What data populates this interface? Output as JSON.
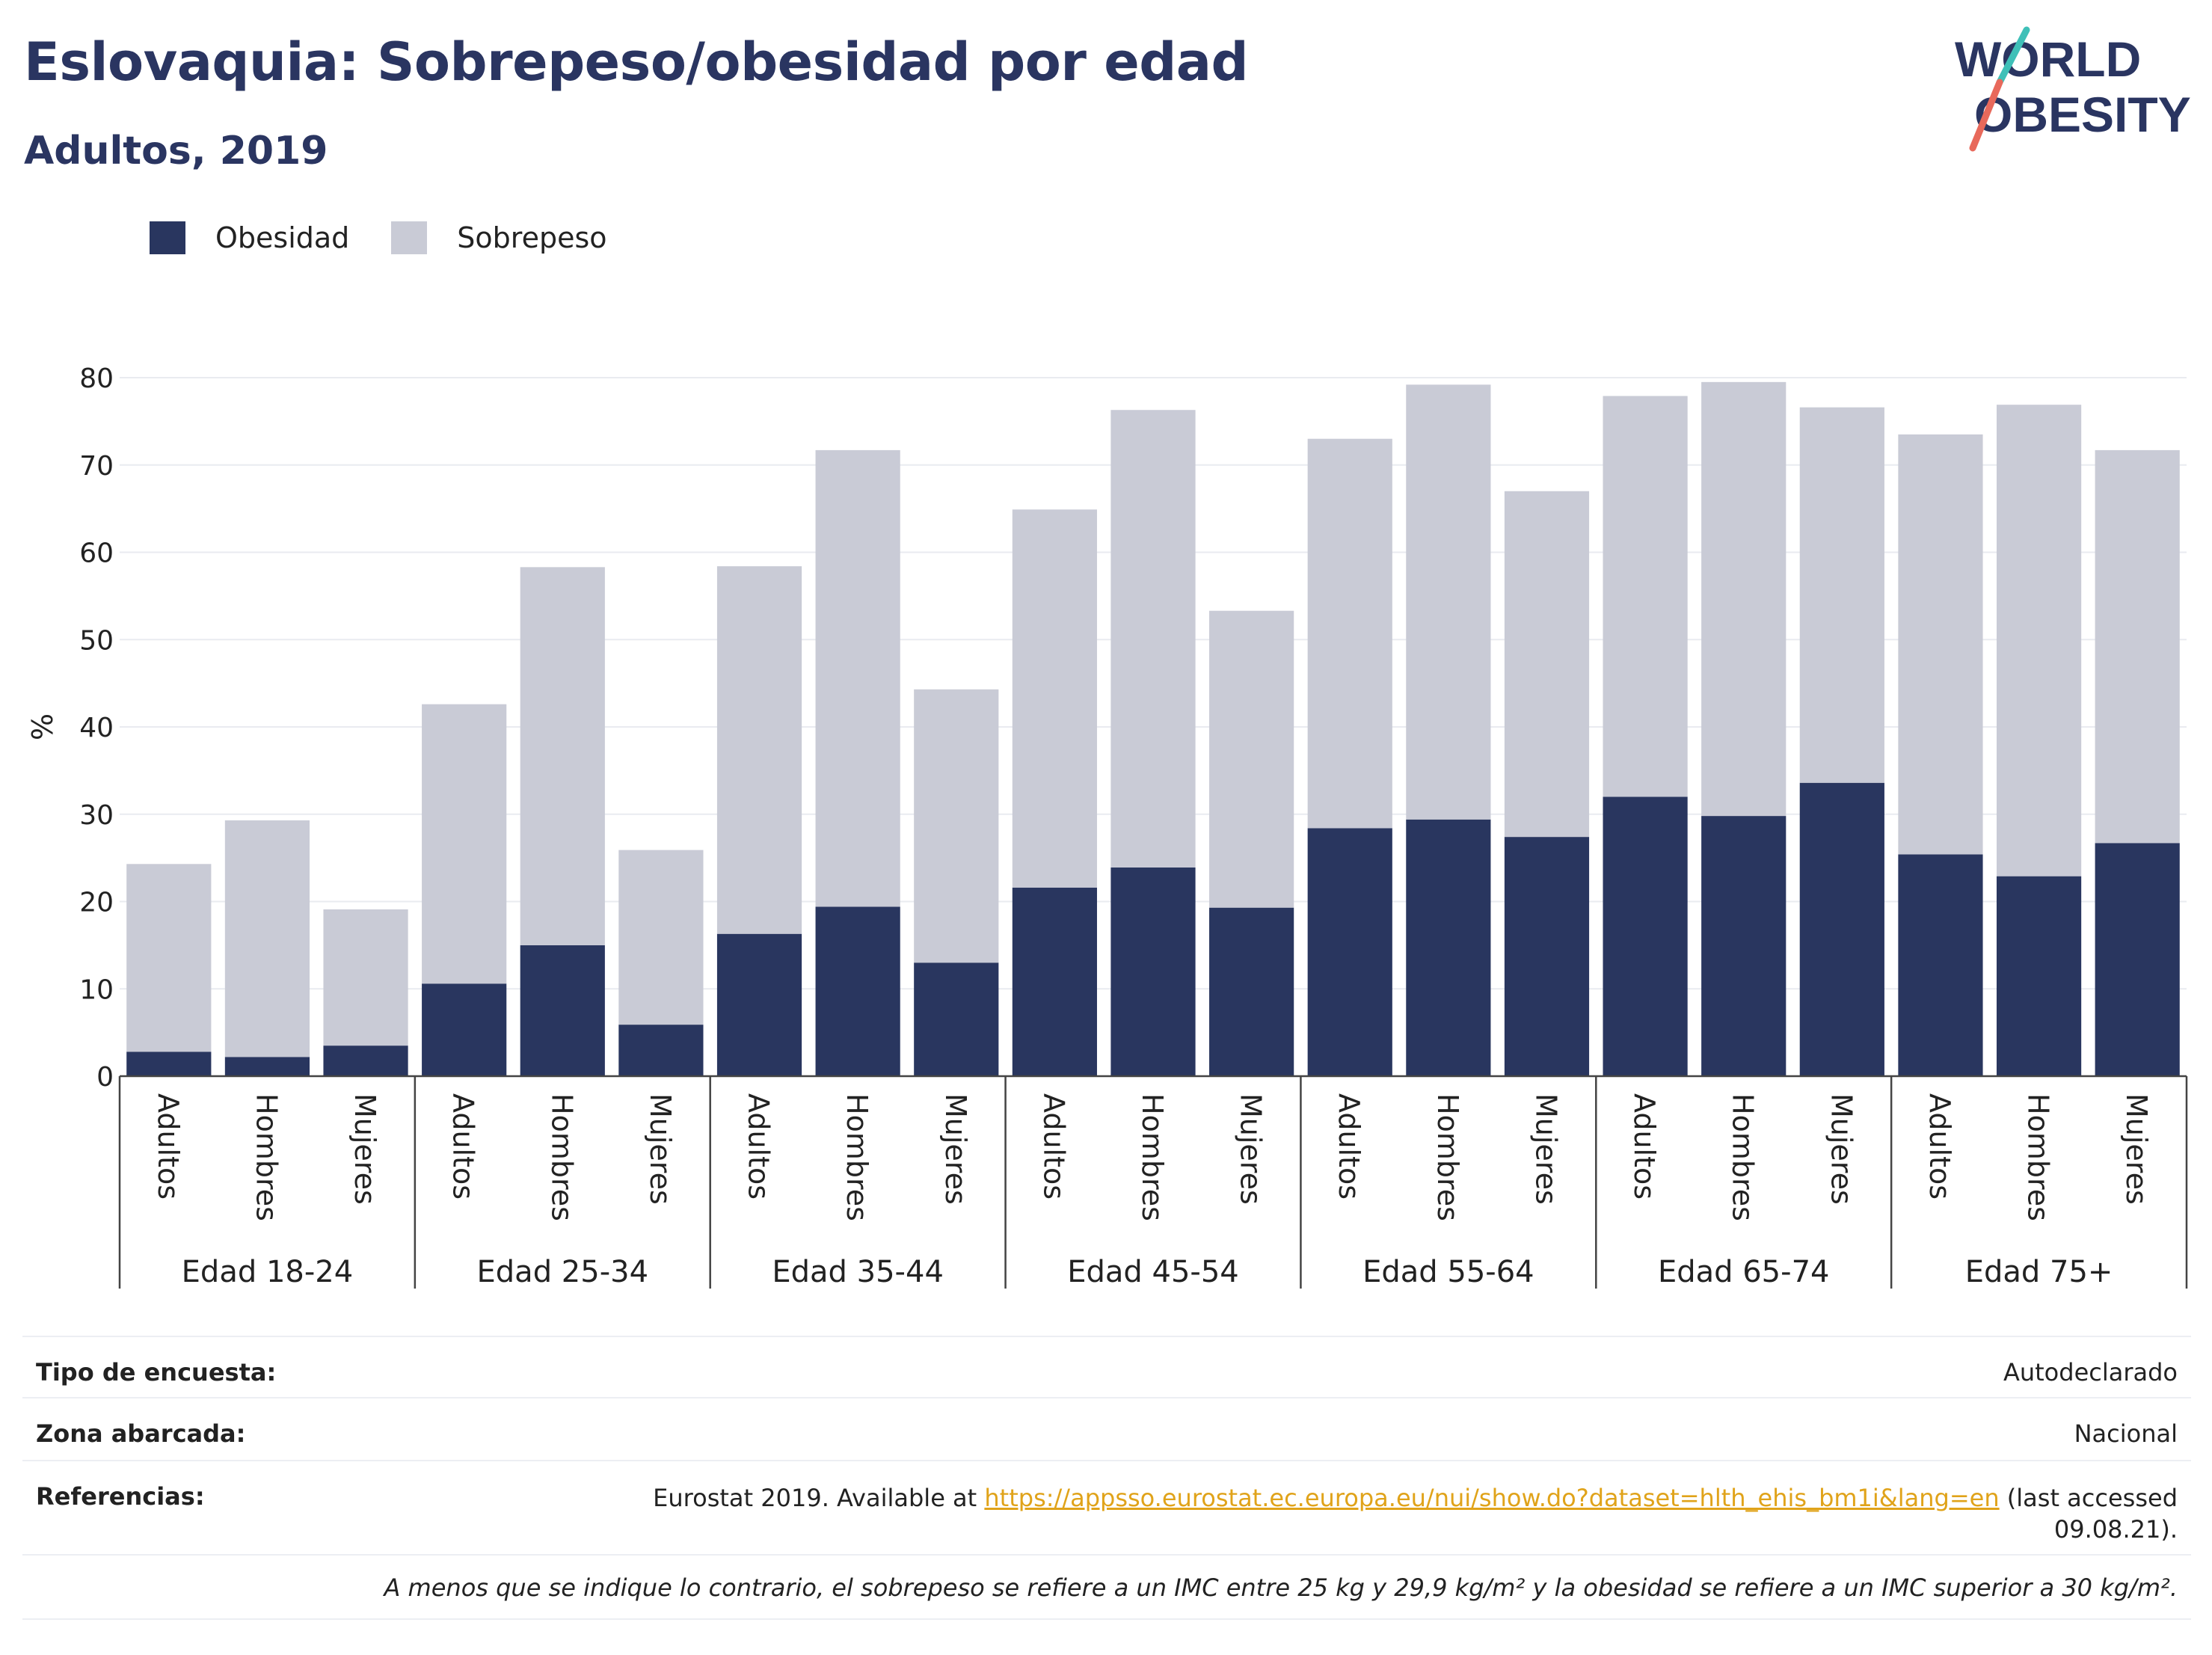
{
  "header": {
    "title": "Eslovaquia: Sobrepeso/obesidad por edad",
    "subtitle": "Adultos, 2019"
  },
  "logo": {
    "line1": "WORLD",
    "line2": "OBESITY"
  },
  "colors": {
    "obesity": "#29365f",
    "overweight": "#c9cbd6",
    "title": "#2a3561",
    "link": "#e0a31a"
  },
  "chart_data": {
    "type": "bar",
    "stacked": true,
    "ylabel": "%",
    "ylim": [
      0,
      80
    ],
    "yticks": [
      0,
      10,
      20,
      30,
      40,
      50,
      60,
      70,
      80
    ],
    "grid": true,
    "legend_position": "top-left",
    "groups": [
      "Edad 18-24",
      "Edad 25-34",
      "Edad 35-44",
      "Edad 45-54",
      "Edad 55-64",
      "Edad 65-74",
      "Edad 75+"
    ],
    "subcategories": [
      "Adultos",
      "Hombres",
      "Mujeres"
    ],
    "series": [
      {
        "name": "Obesidad",
        "values": [
          2.8,
          2.2,
          3.5,
          10.6,
          15.0,
          5.9,
          16.3,
          19.4,
          13.0,
          21.6,
          23.9,
          19.3,
          28.4,
          29.4,
          27.4,
          32.0,
          29.8,
          33.6,
          25.4,
          22.9,
          26.7
        ]
      },
      {
        "name": "Sobrepeso",
        "values": [
          21.5,
          27.1,
          15.6,
          32.0,
          43.3,
          20.0,
          42.1,
          52.3,
          31.3,
          43.3,
          52.4,
          34.0,
          44.6,
          49.8,
          39.6,
          45.9,
          49.7,
          43.0,
          48.1,
          54.0,
          45.0
        ]
      }
    ]
  },
  "info": {
    "survey_label": "Tipo de encuesta:",
    "survey_value": "Autodeclarado",
    "area_label": "Zona abarcada:",
    "area_value": "Nacional",
    "refs_label": "Referencias:",
    "refs_prefix": "Eurostat 2019. Available at ",
    "refs_link": "https://appsso.eurostat.ec.europa.eu/nui/show.do?dataset=hlth_ehis_bm1i&lang=en",
    "refs_suffix": " (last accessed",
    "refs_date": "09.08.21).",
    "footnote": "A menos que se indique lo contrario, el sobrepeso se refiere a un IMC entre 25 kg y 29,9 kg/m² y la obesidad se refiere a un IMC superior a 30 kg/m²."
  }
}
